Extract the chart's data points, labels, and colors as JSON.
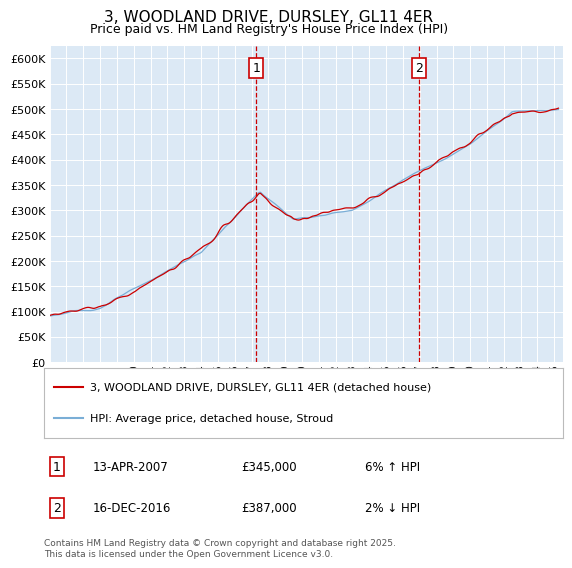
{
  "title": "3, WOODLAND DRIVE, DURSLEY, GL11 4ER",
  "subtitle": "Price paid vs. HM Land Registry's House Price Index (HPI)",
  "ylim": [
    0,
    625000
  ],
  "yticks": [
    0,
    50000,
    100000,
    150000,
    200000,
    250000,
    300000,
    350000,
    400000,
    450000,
    500000,
    550000,
    600000
  ],
  "ytick_labels": [
    "£0",
    "£50K",
    "£100K",
    "£150K",
    "£200K",
    "£250K",
    "£300K",
    "£350K",
    "£400K",
    "£450K",
    "£500K",
    "£550K",
    "£600K"
  ],
  "xlim_start": 1995.0,
  "xlim_end": 2025.5,
  "background_color": "#ffffff",
  "plot_bg_color": "#dce9f5",
  "grid_color": "#ffffff",
  "legend_label_red": "3, WOODLAND DRIVE, DURSLEY, GL11 4ER (detached house)",
  "legend_label_blue": "HPI: Average price, detached house, Stroud",
  "annotation1_date": "13-APR-2007",
  "annotation1_price": "£345,000",
  "annotation1_hpi": "6% ↑ HPI",
  "annotation2_date": "16-DEC-2016",
  "annotation2_price": "£387,000",
  "annotation2_hpi": "2% ↓ HPI",
  "footer": "Contains HM Land Registry data © Crown copyright and database right 2025.\nThis data is licensed under the Open Government Licence v3.0.",
  "red_color": "#cc0000",
  "blue_color": "#7aaed6",
  "marker1_x": 2007.29,
  "marker2_x": 2016.96
}
